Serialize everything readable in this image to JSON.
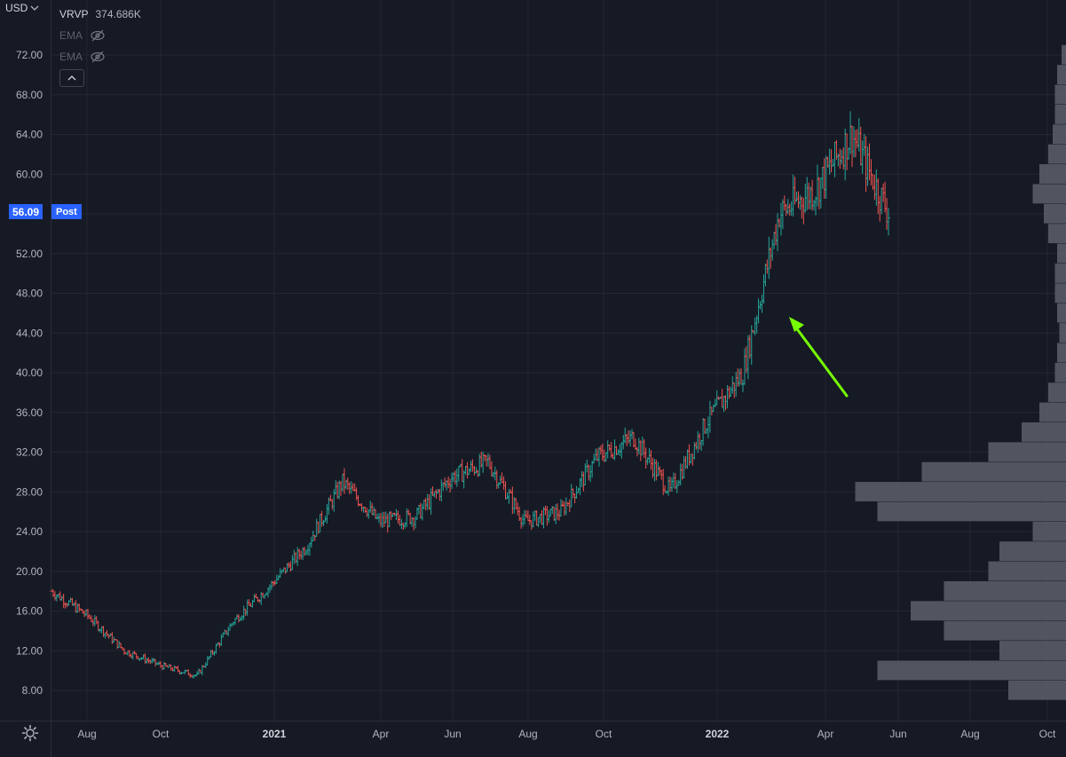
{
  "header": {
    "currency": "USD",
    "indicator_name": "VRVP",
    "indicator_value": "374.686K",
    "ema_1": "EMA",
    "ema_2": "EMA"
  },
  "price_label": {
    "value": "56.09",
    "session": "Post",
    "color": "#2962ff"
  },
  "colors": {
    "up": "#26a69a",
    "down": "#ef5350",
    "annotation_arrow": "#76ff03",
    "volume_profile": "#5d606b",
    "background": "#161a25",
    "grid": "#242733"
  },
  "icons": [
    "chevron-down-icon",
    "eye-off-icon",
    "chevron-up-icon",
    "settings-gear-icon",
    "arrow-annotation-icon"
  ],
  "chart_data": {
    "type": "ohlc",
    "xlabel": "",
    "ylabel": "",
    "ylim": [
      6,
      76
    ],
    "x_ticks": [
      "Aug",
      "Oct",
      "2021",
      "Apr",
      "Jun",
      "Aug",
      "Oct",
      "2022",
      "Apr",
      "Jun",
      "Aug",
      "Oct"
    ],
    "y_ticks": [
      "8.00",
      "12.00",
      "16.00",
      "20.00",
      "24.00",
      "28.00",
      "32.00",
      "36.00",
      "40.00",
      "44.00",
      "48.00",
      "52.00",
      "56.00",
      "60.00",
      "64.00",
      "68.00",
      "72.00"
    ],
    "grid": true,
    "approx_close_series": {
      "months": [
        "2020-07",
        "2020-08",
        "2020-09",
        "2020-10",
        "2020-11",
        "2020-12",
        "2021-01",
        "2021-02",
        "2021-03",
        "2021-04",
        "2021-05",
        "2021-06",
        "2021-07",
        "2021-08",
        "2021-09",
        "2021-10",
        "2021-11",
        "2021-12",
        "2022-01",
        "2022-02",
        "2022-03",
        "2022-04",
        "2022-05",
        "2022-06"
      ],
      "values": [
        18.0,
        15.5,
        12.0,
        10.5,
        9.5,
        15.0,
        18.5,
        22.5,
        29.0,
        25.0,
        25.5,
        29.5,
        31.0,
        25.0,
        26.0,
        31.5,
        33.5,
        28.0,
        35.0,
        40.0,
        56.0,
        58.5,
        64.0,
        56.1
      ]
    },
    "volume_profile": {
      "levels": [
        8,
        10,
        12,
        14,
        16,
        18,
        20,
        22,
        24,
        26,
        28,
        30,
        32,
        34,
        36,
        38,
        40,
        42,
        44,
        46,
        48,
        50,
        52,
        54,
        56,
        58,
        60,
        62,
        64,
        66,
        68,
        70,
        72
      ],
      "volumes": [
        0.26,
        0.85,
        0.3,
        0.55,
        0.7,
        0.55,
        0.35,
        0.3,
        0.15,
        0.85,
        0.95,
        0.65,
        0.35,
        0.2,
        0.12,
        0.08,
        0.05,
        0.04,
        0.03,
        0.04,
        0.05,
        0.05,
        0.04,
        0.08,
        0.1,
        0.15,
        0.12,
        0.08,
        0.06,
        0.05,
        0.05,
        0.04,
        0.02
      ]
    }
  }
}
